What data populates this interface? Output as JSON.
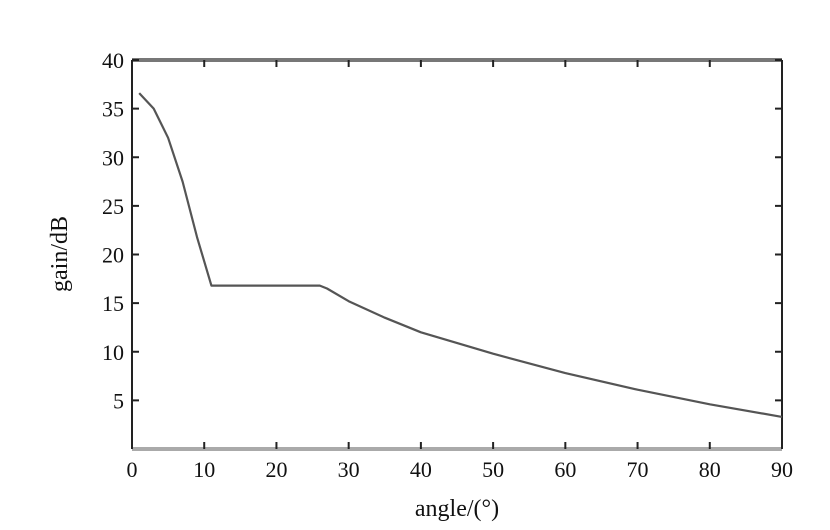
{
  "chart_data": {
    "type": "line",
    "title": "",
    "xlabel": "angle/(°)",
    "ylabel": "gain/dB",
    "xlim": [
      0,
      90
    ],
    "ylim": [
      0,
      40
    ],
    "x_ticks": [
      0,
      10,
      20,
      30,
      40,
      50,
      60,
      70,
      80,
      90
    ],
    "y_ticks": [
      5,
      10,
      15,
      20,
      25,
      30,
      35,
      40
    ],
    "grid": false,
    "legend": "none",
    "series": [
      {
        "color": "#555555",
        "x": [
          1,
          3,
          5,
          7,
          9,
          11,
          12,
          15,
          20,
          26,
          27,
          30,
          35,
          40,
          50,
          60,
          70,
          80,
          90
        ],
        "y": [
          36.6,
          35.0,
          32.0,
          27.5,
          21.8,
          16.8,
          16.8,
          16.8,
          16.8,
          16.8,
          16.5,
          15.2,
          13.5,
          12.0,
          9.8,
          7.8,
          6.1,
          4.6,
          3.3
        ]
      }
    ]
  }
}
